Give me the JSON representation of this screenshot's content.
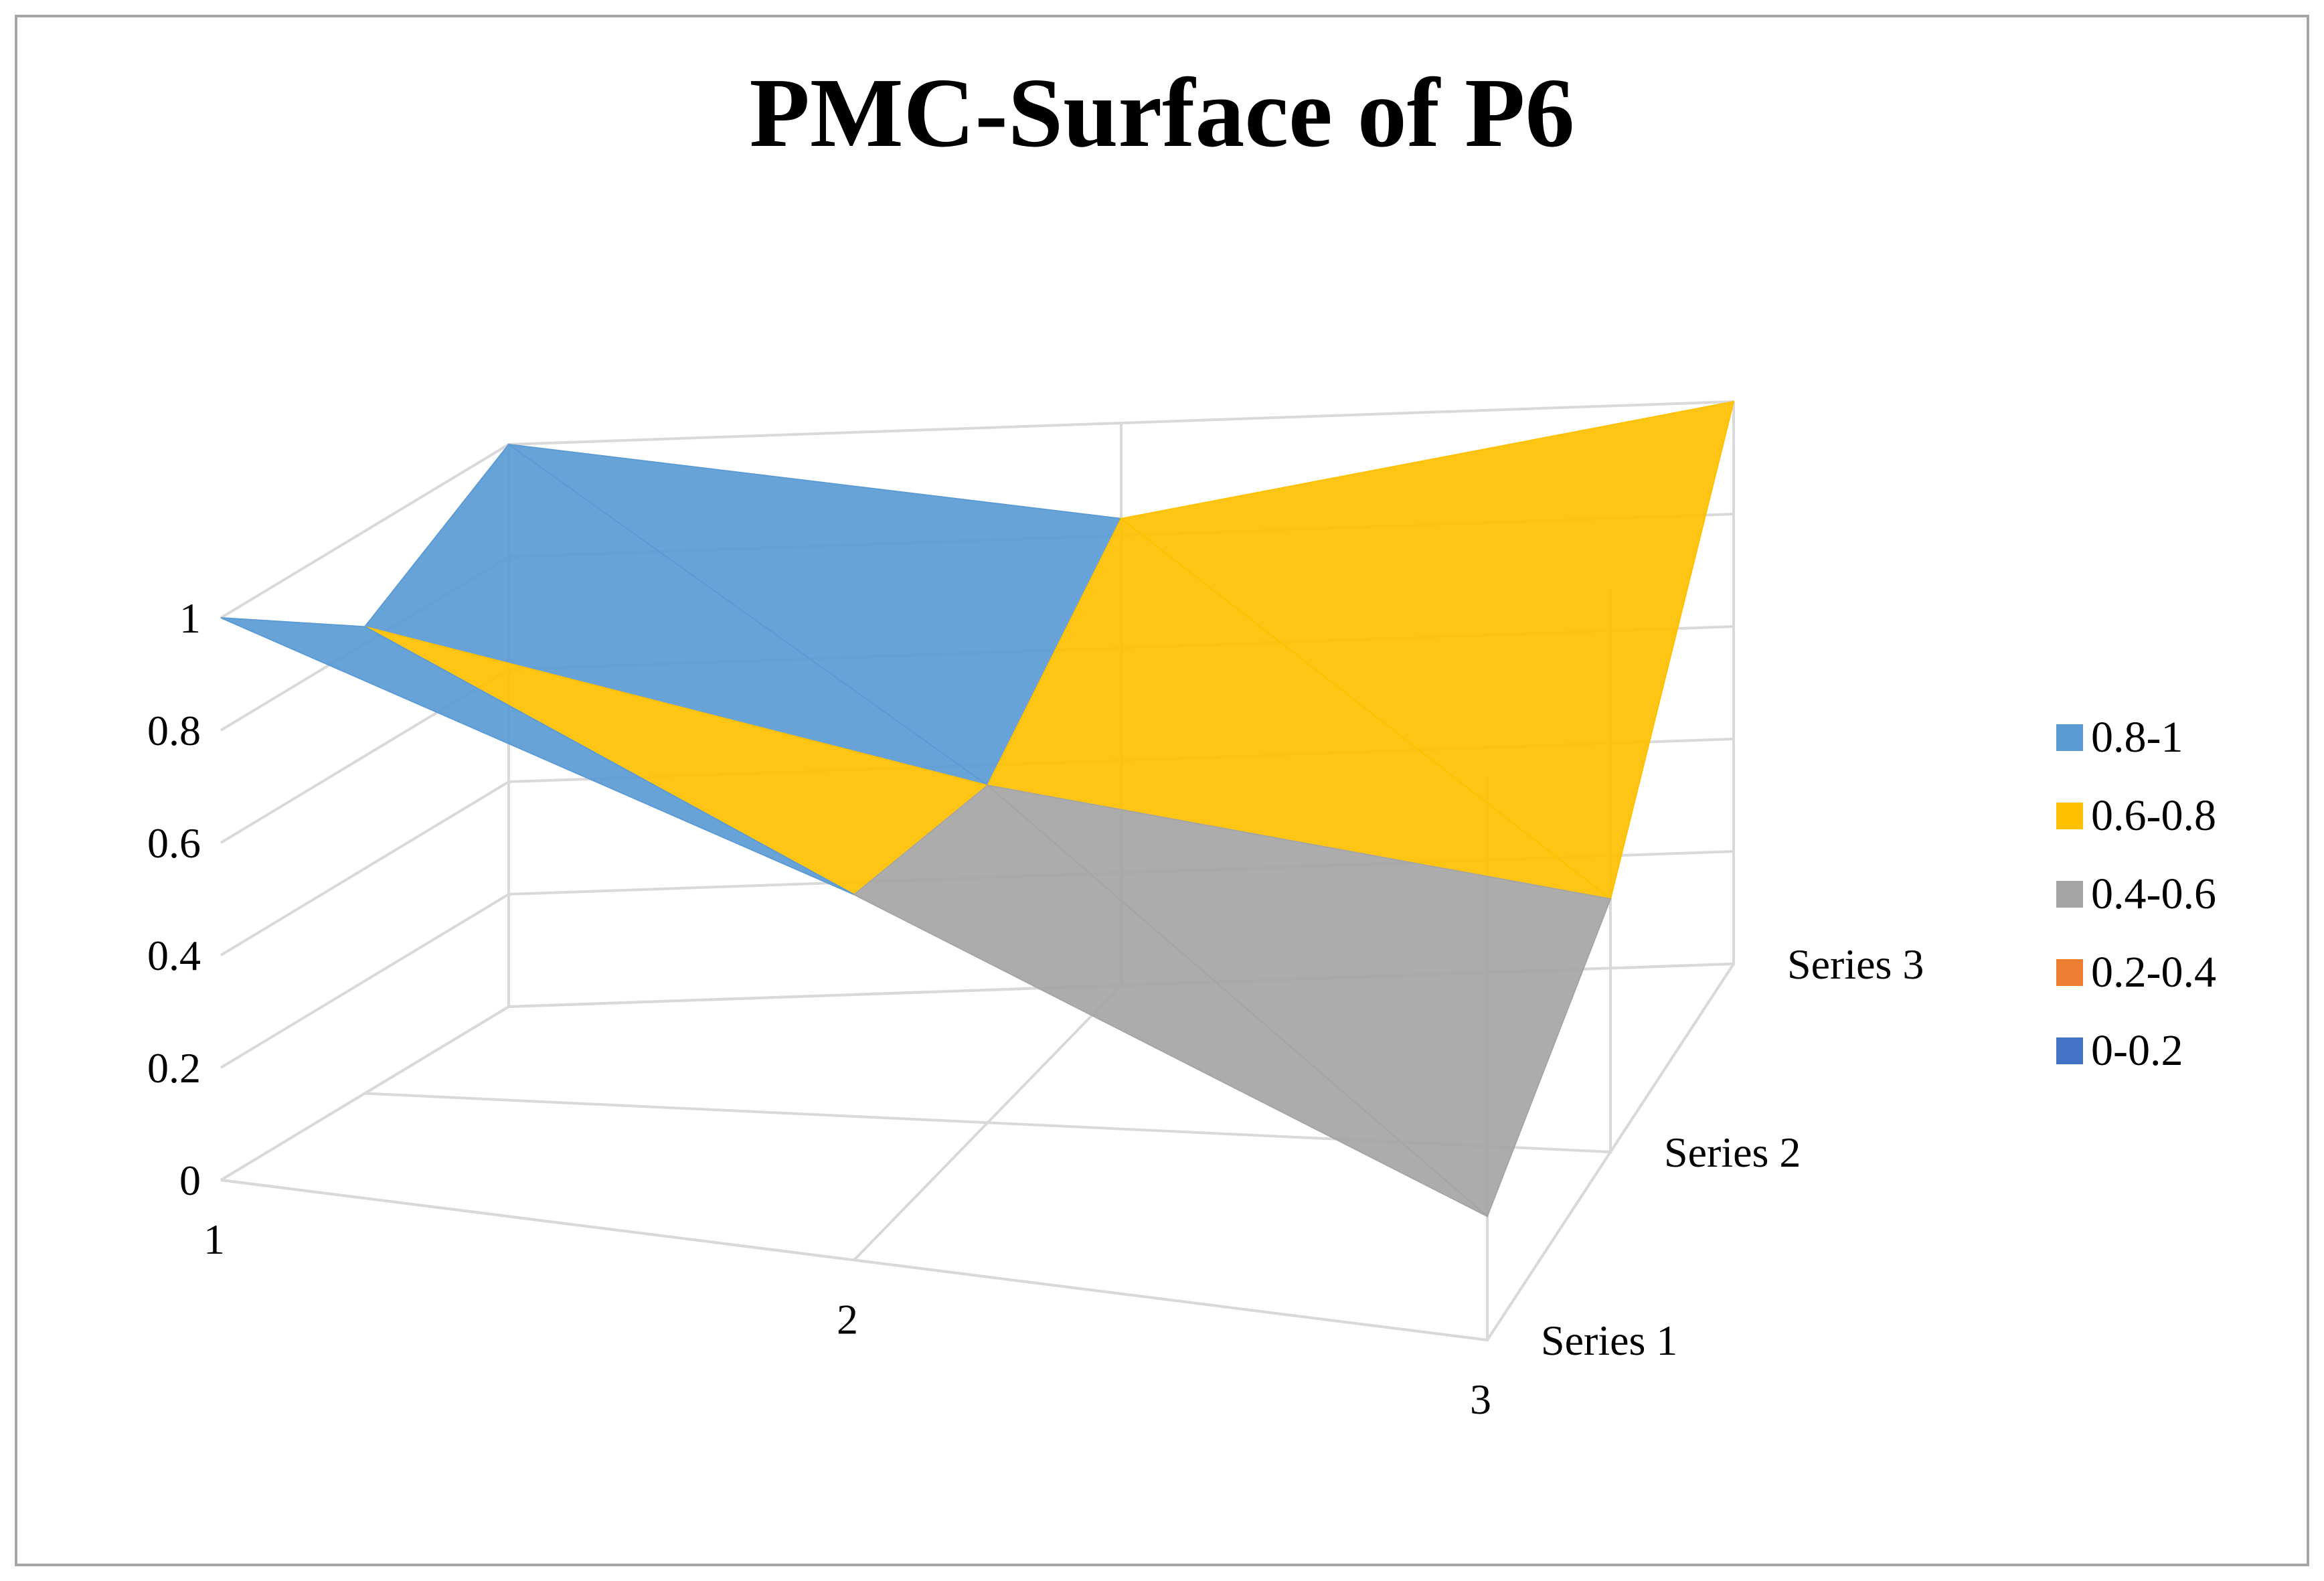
{
  "chart_data": {
    "type": "surface",
    "title": "PMC-Surface of P6",
    "categories": [
      "1",
      "2",
      "3"
    ],
    "series_names": [
      "Series 1",
      "Series 2",
      "Series 3"
    ],
    "z_ticks": [
      "0",
      "0.2",
      "0.4",
      "0.6",
      "0.8",
      "1"
    ],
    "zlim": [
      0,
      1
    ],
    "series": [
      {
        "name": "Series 1",
        "values": [
          1,
          0.65,
          0.22
        ]
      },
      {
        "name": "Series 2",
        "values": [
          0.83,
          0.6,
          0.45
        ]
      },
      {
        "name": "Series 3",
        "values": [
          1,
          0.83,
          1
        ]
      }
    ],
    "legend": {
      "position": "right",
      "items": [
        {
          "label": "0.8-1",
          "color": "#5b9bd5"
        },
        {
          "label": "0.6-0.8",
          "color": "#ffc000"
        },
        {
          "label": "0.4-0.6",
          "color": "#a5a5a5"
        },
        {
          "label": "0.2-0.4",
          "color": "#ed7d31"
        },
        {
          "label": "0-0.2",
          "color": "#4472c4"
        }
      ]
    },
    "grid": true
  }
}
